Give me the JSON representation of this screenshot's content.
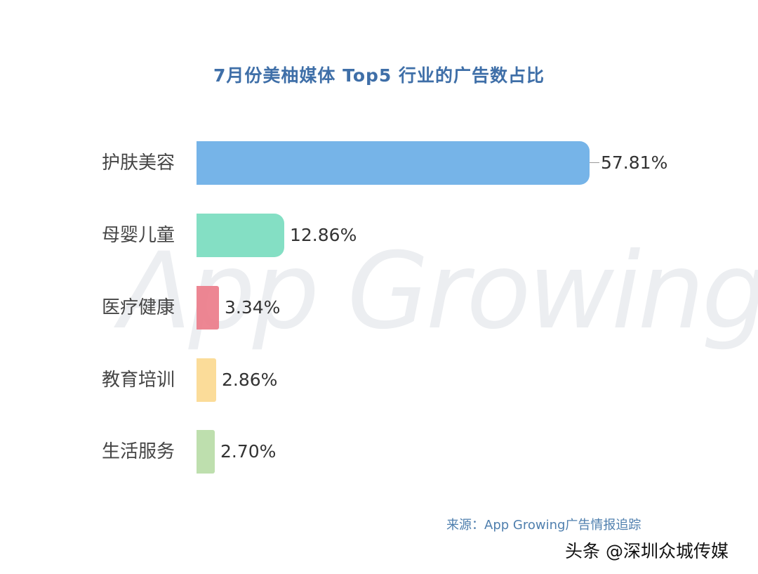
{
  "title": "7月份美柚媒体 Top5 行业的广告数占比",
  "watermark": "App Growing",
  "source": "来源：App Growing广告情报追踪",
  "credit": "头条 @深圳众城传媒",
  "chart_data": {
    "type": "bar",
    "orientation": "horizontal",
    "title": "7月份美柚媒体 Top5 行业的广告数占比",
    "categories": [
      "护肤美容",
      "母婴儿童",
      "医疗健康",
      "教育培训",
      "生活服务"
    ],
    "values": [
      57.81,
      12.86,
      3.34,
      2.86,
      2.7
    ],
    "labels": [
      "57.81%",
      "12.86%",
      "3.34%",
      "2.86%",
      "2.70%"
    ],
    "colors": [
      "#6aaee6",
      "#7adcbf",
      "#ec7c8a",
      "#fbd990",
      "#b9dca7"
    ],
    "xlabel": "",
    "ylabel": "",
    "unit": "%",
    "grid": false,
    "legend": false
  },
  "rows": [
    {
      "cat": "护肤美容",
      "label": "57.81%"
    },
    {
      "cat": "母婴儿童",
      "label": "12.86%"
    },
    {
      "cat": "医疗健康",
      "label": "3.34%"
    },
    {
      "cat": "教育培训",
      "label": "2.86%"
    },
    {
      "cat": "生活服务",
      "label": "2.70%"
    }
  ]
}
